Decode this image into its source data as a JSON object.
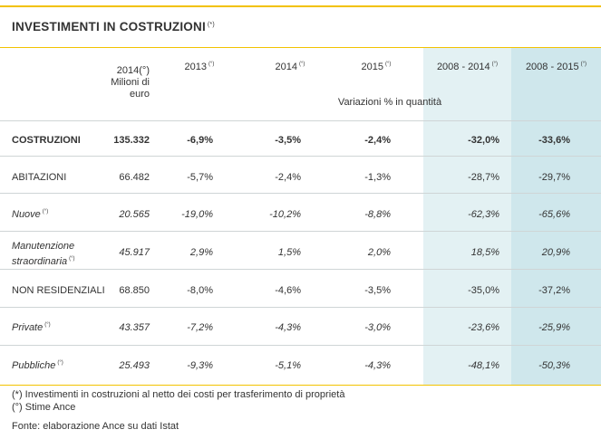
{
  "title": "INVESTIMENTI IN COSTRUZIONI",
  "title_note": "(*)",
  "header": {
    "base_col": [
      "2014(°)",
      "Milioni di",
      "euro"
    ],
    "cols": [
      {
        "label": "2013",
        "note": "(°)"
      },
      {
        "label": "2014",
        "note": "(°)"
      },
      {
        "label": "2015",
        "note": "(°)"
      },
      {
        "label": "2008 - 2014",
        "note": "(°)"
      },
      {
        "label": "2008 - 2015",
        "note": "(°)"
      }
    ],
    "sublabel": "Variazioni % in quantità"
  },
  "rows": [
    {
      "label": "COSTRUZIONI",
      "note": "",
      "base": "135.332",
      "values": [
        "-6,9%",
        "-3,5%",
        "-2,4%",
        "-32,0%",
        "-33,6%"
      ]
    },
    {
      "label": "ABITAZIONI",
      "note": "",
      "base": "66.482",
      "values": [
        "-5,7%",
        "-2,4%",
        "-1,3%",
        "-28,7%",
        "-29,7%"
      ]
    },
    {
      "label": "Nuove",
      "note": "(°)",
      "base": "20.565",
      "values": [
        "-19,0%",
        "-10,2%",
        "-8,8%",
        "-62,3%",
        "-65,6%"
      ]
    },
    {
      "label_lines": [
        "Manutenzione",
        "straordinaria"
      ],
      "note": "(°)",
      "base": "45.917",
      "values": [
        "2,9%",
        "1,5%",
        "2,0%",
        "18,5%",
        "20,9%"
      ]
    },
    {
      "label": "NON RESIDENZIALI",
      "note": "",
      "base": "68.850",
      "values": [
        "-8,0%",
        "-4,6%",
        "-3,5%",
        "-35,0%",
        "-37,2%"
      ]
    },
    {
      "label": "Private",
      "note": "(°)",
      "base": "43.357",
      "values": [
        "-7,2%",
        "-4,3%",
        "-3,0%",
        "-23,6%",
        "-25,9%"
      ]
    },
    {
      "label": "Pubbliche",
      "note": "(°)",
      "base": "25.493",
      "values": [
        "-9,3%",
        "-5,1%",
        "-4,3%",
        "-48,1%",
        "-50,3%"
      ]
    }
  ],
  "footnotes": [
    "(*) Investimenti in costruzioni al netto dei costi per trasferimento di proprietà",
    "(°) Stime Ance"
  ],
  "source": "Fonte: elaborazione Ance su dati Istat"
}
